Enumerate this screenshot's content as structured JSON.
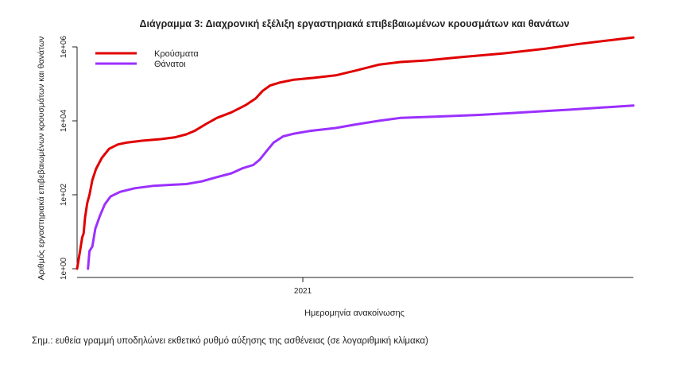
{
  "chart_data": {
    "type": "line",
    "title": "Διάγραμμα 3: Διαχρονική εξέλιξη εργαστηριακά επιβεβαιωμένων κρουσμάτων και θανάτων",
    "xlabel": "Ημερομηνία ανακοίνωσης",
    "ylabel": "Αριθμός εργαστηριακά επιβεβαιωμένων κρουσμάτων και θανάτων",
    "y_scale": "log",
    "ylim": [
      1,
      1000000
    ],
    "yticks": [
      "1e+00",
      "1e+02",
      "1e+04",
      "1e+06"
    ],
    "xlim": [
      "2020-02-26",
      "2022-03-31"
    ],
    "xticks": [
      {
        "date": "2021-01-01",
        "label": "2021"
      }
    ],
    "grid": false,
    "legend_position": "top-left",
    "series": [
      {
        "name": "Κρούσματα",
        "color": "#e00000",
        "points": [
          [
            "2020-02-26",
            1
          ],
          [
            "2020-03-01",
            3
          ],
          [
            "2020-03-04",
            7
          ],
          [
            "2020-03-06",
            9
          ],
          [
            "2020-03-08",
            25
          ],
          [
            "2020-03-11",
            60
          ],
          [
            "2020-03-14",
            100
          ],
          [
            "2020-03-18",
            250
          ],
          [
            "2020-03-23",
            500
          ],
          [
            "2020-03-31",
            1000
          ],
          [
            "2020-04-10",
            1750
          ],
          [
            "2020-04-22",
            2300
          ],
          [
            "2020-05-05",
            2600
          ],
          [
            "2020-05-25",
            2900
          ],
          [
            "2020-06-20",
            3200
          ],
          [
            "2020-07-10",
            3600
          ],
          [
            "2020-07-25",
            4300
          ],
          [
            "2020-08-05",
            5300
          ],
          [
            "2020-08-20",
            8000
          ],
          [
            "2020-09-05",
            12000
          ],
          [
            "2020-09-25",
            17000
          ],
          [
            "2020-10-15",
            27000
          ],
          [
            "2020-10-28",
            40000
          ],
          [
            "2020-11-07",
            65000
          ],
          [
            "2020-11-17",
            90000
          ],
          [
            "2020-11-30",
            108000
          ],
          [
            "2020-12-20",
            130000
          ],
          [
            "2021-01-15",
            145000
          ],
          [
            "2021-02-15",
            170000
          ],
          [
            "2021-03-15",
            230000
          ],
          [
            "2021-04-15",
            330000
          ],
          [
            "2021-05-15",
            390000
          ],
          [
            "2021-06-20",
            430000
          ],
          [
            "2021-08-01",
            520000
          ],
          [
            "2021-10-01",
            660000
          ],
          [
            "2021-12-01",
            900000
          ],
          [
            "2022-01-15",
            1200000
          ],
          [
            "2022-03-31",
            1800000
          ]
        ]
      },
      {
        "name": "Θάνατοι",
        "color": "#9b30ff",
        "points": [
          [
            "2020-03-12",
            1
          ],
          [
            "2020-03-14",
            3
          ],
          [
            "2020-03-18",
            4
          ],
          [
            "2020-03-22",
            12
          ],
          [
            "2020-03-28",
            26
          ],
          [
            "2020-04-04",
            55
          ],
          [
            "2020-04-12",
            90
          ],
          [
            "2020-04-25",
            120
          ],
          [
            "2020-05-15",
            150
          ],
          [
            "2020-06-10",
            175
          ],
          [
            "2020-07-01",
            185
          ],
          [
            "2020-07-25",
            195
          ],
          [
            "2020-08-15",
            230
          ],
          [
            "2020-09-05",
            300
          ],
          [
            "2020-09-25",
            380
          ],
          [
            "2020-10-10",
            520
          ],
          [
            "2020-10-25",
            640
          ],
          [
            "2020-11-03",
            900
          ],
          [
            "2020-11-12",
            1500
          ],
          [
            "2020-11-22",
            2600
          ],
          [
            "2020-12-05",
            3800
          ],
          [
            "2020-12-20",
            4500
          ],
          [
            "2021-01-10",
            5300
          ],
          [
            "2021-02-15",
            6400
          ],
          [
            "2021-03-15",
            8000
          ],
          [
            "2021-04-15",
            10000
          ],
          [
            "2021-05-15",
            12000
          ],
          [
            "2021-07-01",
            13000
          ],
          [
            "2021-09-01",
            14500
          ],
          [
            "2021-11-01",
            17000
          ],
          [
            "2022-01-01",
            20000
          ],
          [
            "2022-03-31",
            26000
          ]
        ]
      }
    ]
  },
  "note": "Σημ.: ευθεία γραμμή υποδηλώνει εκθετικό ρυθμό αύξησης της ασθένειας (σε λογαριθμική κλίμακα)"
}
